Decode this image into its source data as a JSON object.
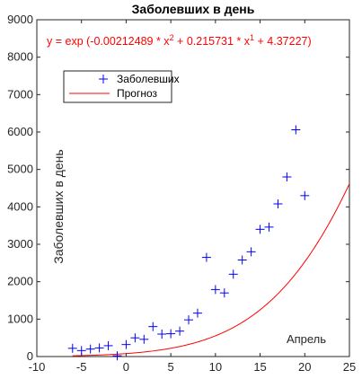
{
  "chart_data": {
    "type": "scatter",
    "title": "Заболевших в день",
    "xlabel": "",
    "ylabel": "Заболевших в день",
    "annotation": "Апрель",
    "equation": {
      "prefix": "y = exp (-0.00212489 * x",
      "exp1": "2",
      "mid": " + 0.215731 * x",
      "exp2": "1",
      "suffix": " + 4.37227)"
    },
    "xlim": [
      -10,
      25
    ],
    "ylim": [
      0,
      9000
    ],
    "xticks": [
      -10,
      -5,
      0,
      5,
      10,
      15,
      20,
      25
    ],
    "yticks": [
      0,
      1000,
      2000,
      3000,
      4000,
      5000,
      6000,
      7000,
      8000,
      9000
    ],
    "grid": false,
    "legend_position": "top-left",
    "series": [
      {
        "name": "Заболевших",
        "kind": "markers",
        "marker": "+",
        "color": "#0000ff",
        "x": [
          -6,
          -5,
          -4,
          -3,
          -2,
          -1,
          0,
          1,
          2,
          3,
          4,
          5,
          6,
          7,
          8,
          9,
          10,
          11,
          12,
          13,
          14,
          15,
          16,
          17,
          18,
          19,
          20
        ],
        "y": [
          220,
          160,
          200,
          230,
          290,
          20,
          320,
          500,
          460,
          800,
          600,
          610,
          680,
          980,
          1160,
          2650,
          1790,
          1700,
          2200,
          2580,
          2800,
          3400,
          3460,
          4080,
          4800,
          6060,
          4300
        ]
      },
      {
        "name": "Прогноз",
        "kind": "line",
        "color": "#ff0000",
        "model": {
          "a": -0.00212489,
          "b": 0.215731,
          "c": 4.37227
        },
        "x_range": [
          -6,
          25
        ]
      }
    ]
  }
}
